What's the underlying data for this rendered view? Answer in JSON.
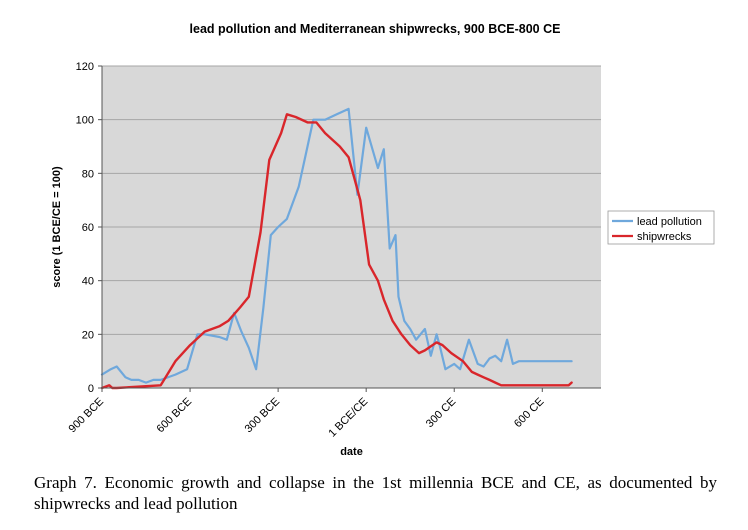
{
  "colors": {
    "plot_bg": "#d8d8d8",
    "grid": "#a6a6a6",
    "lead": "#6fa8dc",
    "ship": "#d9262b"
  },
  "chart_data": {
    "type": "line",
    "title": "lead pollution and Mediterranean shipwrecks, 900 BCE-800 CE",
    "xlabel": "date",
    "ylabel": "score (1 BCE/CE = 100)",
    "xlim": [
      -900,
      800
    ],
    "ylim": [
      0,
      120
    ],
    "yticks": [
      0,
      20,
      40,
      60,
      80,
      100,
      120
    ],
    "xticks": [
      {
        "value": -900,
        "label": "900 BCE"
      },
      {
        "value": -600,
        "label": "600 BCE"
      },
      {
        "value": -300,
        "label": "300 BCE"
      },
      {
        "value": 0,
        "label": "1 BCE/CE"
      },
      {
        "value": 300,
        "label": "300 CE"
      },
      {
        "value": 600,
        "label": "600 CE"
      }
    ],
    "grid": true,
    "legend_position": "right",
    "series": [
      {
        "name": "lead pollution",
        "color": "#6fa8dc",
        "x": [
          -900,
          -870,
          -850,
          -820,
          -800,
          -775,
          -750,
          -725,
          -700,
          -650,
          -610,
          -575,
          -550,
          -500,
          -475,
          -450,
          -425,
          -400,
          -375,
          -350,
          -325,
          -300,
          -270,
          -230,
          -200,
          -180,
          -140,
          -100,
          -60,
          -30,
          0,
          40,
          60,
          80,
          100,
          110,
          130,
          150,
          170,
          200,
          220,
          240,
          250,
          270,
          300,
          320,
          350,
          380,
          400,
          420,
          440,
          460,
          480,
          500,
          520,
          540,
          560,
          570,
          590,
          600,
          620,
          640,
          660,
          690,
          700
        ],
        "values": [
          5,
          7,
          8,
          4,
          3,
          3,
          2,
          3,
          3,
          5,
          7,
          20,
          20,
          19,
          18,
          28,
          21,
          15,
          7,
          30,
          57,
          60,
          63,
          75,
          90,
          100,
          100,
          102,
          104,
          72,
          97,
          82,
          89,
          52,
          57,
          34,
          25,
          22,
          18,
          22,
          12,
          20,
          16,
          7,
          9,
          7,
          18,
          9,
          8,
          11,
          12,
          10,
          18,
          9,
          10,
          10,
          10,
          10,
          10,
          10,
          10,
          10,
          10,
          10,
          10
        ]
      },
      {
        "name": "shipwrecks",
        "color": "#d9262b",
        "x": [
          -900,
          -875,
          -865,
          -850,
          -700,
          -650,
          -600,
          -550,
          -500,
          -470,
          -430,
          -400,
          -360,
          -330,
          -310,
          -290,
          -270,
          -240,
          -200,
          -170,
          -140,
          -110,
          -90,
          -60,
          -30,
          -20,
          10,
          40,
          60,
          90,
          120,
          150,
          180,
          200,
          240,
          260,
          290,
          330,
          360,
          380,
          400,
          420,
          440,
          460,
          480,
          500,
          520,
          540,
          560,
          580,
          600,
          620,
          640,
          660,
          690,
          700
        ],
        "values": [
          0,
          1,
          0,
          0,
          1,
          10,
          16,
          21,
          23,
          25,
          30,
          34,
          58,
          85,
          90,
          95,
          102,
          101,
          99,
          99,
          95,
          92,
          90,
          86,
          74,
          70,
          46,
          40,
          33,
          25,
          20,
          16,
          13,
          14,
          17,
          16,
          13,
          10,
          6,
          5,
          4,
          3,
          2,
          1,
          1,
          1,
          1,
          1,
          1,
          1,
          1,
          1,
          1,
          1,
          1,
          2
        ]
      }
    ]
  },
  "caption": "Graph 7.  Economic growth and collapse in the 1st millennia BCE and CE, as documented by shipwrecks and lead pollution"
}
